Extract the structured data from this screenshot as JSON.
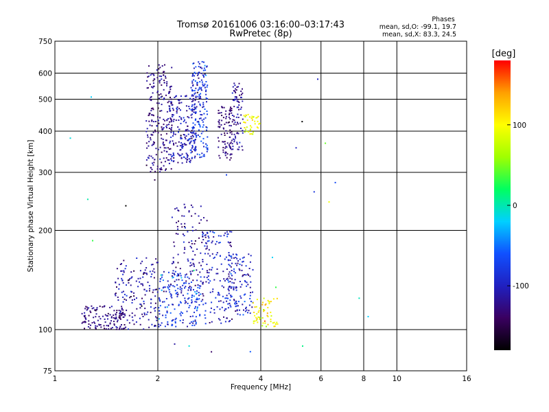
{
  "chart_data": {
    "type": "scatter",
    "title": "Tromsø 20161006 03:16:00–03:17:43",
    "subtitle": "RwPretec (8p)",
    "xlabel": "Frequency [MHz]",
    "ylabel": "Stationary phase Virtual Height [km]",
    "x_scale": "log2",
    "y_scale": "log",
    "xlim": [
      1,
      16
    ],
    "ylim": [
      75,
      750
    ],
    "x_ticks": [
      1,
      2,
      4,
      6,
      8,
      10,
      16
    ],
    "x_tick_labels": [
      "1",
      "2",
      "4",
      "6",
      "8",
      "10",
      "16"
    ],
    "y_ticks": [
      75,
      100,
      200,
      300,
      400,
      500,
      600,
      750
    ],
    "y_tick_labels": [
      "75",
      "100",
      "200",
      "300",
      "400",
      "500",
      "600",
      "750"
    ],
    "grid": true,
    "colorbar": {
      "label": "[deg]",
      "range": [
        -180,
        180
      ],
      "ticks": [
        100,
        0,
        -100
      ],
      "tick_labels": [
        "100",
        "0",
        "-100"
      ],
      "colormap": [
        "#000000",
        "#3a0060",
        "#2020c0",
        "#1050ff",
        "#00d0ff",
        "#00ff60",
        "#a0ff00",
        "#ffff00",
        "#ffa000",
        "#ff0000"
      ]
    },
    "stats": {
      "heading": "Phases",
      "line_o": "mean, sd,O: -99.1, 19.7",
      "line_x": "mean, sd,X:  83.3, 24.5"
    },
    "clusters": [
      {
        "f_range": [
          1.85,
          2.2
        ],
        "h_range": [
          300,
          640
        ],
        "n": 220,
        "phase_mean": -125,
        "phase_sd": 15
      },
      {
        "f_range": [
          2.15,
          2.6
        ],
        "h_range": [
          320,
          520
        ],
        "n": 200,
        "phase_mean": -110,
        "phase_sd": 18
      },
      {
        "f_range": [
          2.5,
          2.8
        ],
        "h_range": [
          330,
          650
        ],
        "n": 180,
        "phase_mean": -85,
        "phase_sd": 20
      },
      {
        "f_range": [
          3.0,
          3.3
        ],
        "h_range": [
          320,
          480
        ],
        "n": 90,
        "phase_mean": -130,
        "phase_sd": 12
      },
      {
        "f_range": [
          3.3,
          3.55
        ],
        "h_range": [
          350,
          560
        ],
        "n": 80,
        "phase_mean": -115,
        "phase_sd": 15
      },
      {
        "f_range": [
          3.55,
          4.0
        ],
        "h_range": [
          390,
          450
        ],
        "n": 40,
        "phase_mean": 95,
        "phase_sd": 15
      },
      {
        "f_range": [
          1.2,
          1.6
        ],
        "h_range": [
          100,
          118
        ],
        "n": 120,
        "phase_mean": -128,
        "phase_sd": 12
      },
      {
        "f_range": [
          1.5,
          2.0
        ],
        "h_range": [
          100,
          165
        ],
        "n": 170,
        "phase_mean": -115,
        "phase_sd": 18
      },
      {
        "f_range": [
          2.0,
          2.7
        ],
        "h_range": [
          102,
          150
        ],
        "n": 200,
        "phase_mean": -85,
        "phase_sd": 22
      },
      {
        "f_range": [
          2.2,
          2.8
        ],
        "h_range": [
          140,
          240
        ],
        "n": 100,
        "phase_mean": -120,
        "phase_sd": 15
      },
      {
        "f_range": [
          2.7,
          3.3
        ],
        "h_range": [
          104,
          200
        ],
        "n": 150,
        "phase_mean": -100,
        "phase_sd": 20
      },
      {
        "f_range": [
          3.2,
          3.8
        ],
        "h_range": [
          110,
          170
        ],
        "n": 120,
        "phase_mean": -95,
        "phase_sd": 22
      },
      {
        "f_range": [
          3.8,
          4.5
        ],
        "h_range": [
          102,
          125
        ],
        "n": 60,
        "phase_mean": 105,
        "phase_sd": 25
      },
      {
        "f_range": [
          1.0,
          8.5
        ],
        "h_range": [
          80,
          620
        ],
        "n": 30,
        "phase_mean": -40,
        "phase_sd": 80
      }
    ]
  }
}
